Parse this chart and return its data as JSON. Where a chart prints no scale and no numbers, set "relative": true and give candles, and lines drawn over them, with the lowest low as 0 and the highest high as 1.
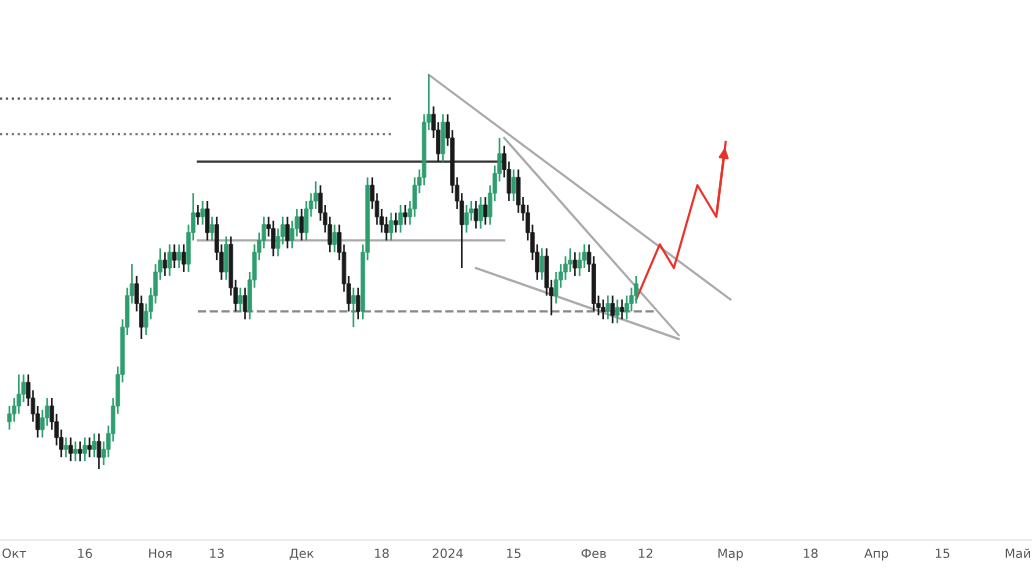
{
  "chart_data": {
    "type": "candlestick",
    "relative": true,
    "x": [
      "2023-09-30",
      "2023-10-01",
      "2023-10-02",
      "2023-10-03",
      "2023-10-04",
      "2023-10-05",
      "2023-10-06",
      "2023-10-07",
      "2023-10-08",
      "2023-10-09",
      "2023-10-10",
      "2023-10-11",
      "2023-10-12",
      "2023-10-13",
      "2023-10-14",
      "2023-10-15",
      "2023-10-16",
      "2023-10-17",
      "2023-10-18",
      "2023-10-19",
      "2023-10-20",
      "2023-10-21",
      "2023-10-22",
      "2023-10-23",
      "2023-10-24",
      "2023-10-25",
      "2023-10-26",
      "2023-10-27",
      "2023-10-28",
      "2023-10-29",
      "2023-10-30",
      "2023-10-31",
      "2023-11-01",
      "2023-11-02",
      "2023-11-03",
      "2023-11-04",
      "2023-11-05",
      "2023-11-06",
      "2023-11-07",
      "2023-11-08",
      "2023-11-09",
      "2023-11-10",
      "2023-11-11",
      "2023-11-12",
      "2023-11-13",
      "2023-11-14",
      "2023-11-15",
      "2023-11-16",
      "2023-11-17",
      "2023-11-18",
      "2023-11-19",
      "2023-11-20",
      "2023-11-21",
      "2023-11-22",
      "2023-11-23",
      "2023-11-24",
      "2023-11-25",
      "2023-11-26",
      "2023-11-27",
      "2023-11-28",
      "2023-11-29",
      "2023-11-30",
      "2023-12-01",
      "2023-12-02",
      "2023-12-03",
      "2023-12-04",
      "2023-12-05",
      "2023-12-06",
      "2023-12-07",
      "2023-12-08",
      "2023-12-09",
      "2023-12-10",
      "2023-12-11",
      "2023-12-12",
      "2023-12-13",
      "2023-12-14",
      "2023-12-15",
      "2023-12-16",
      "2023-12-17",
      "2023-12-18",
      "2023-12-19",
      "2023-12-20",
      "2023-12-21",
      "2023-12-22",
      "2023-12-23",
      "2023-12-24",
      "2023-12-25",
      "2023-12-26",
      "2023-12-27",
      "2023-12-28",
      "2023-12-29",
      "2023-12-30",
      "2023-12-31",
      "2024-01-01",
      "2024-01-02",
      "2024-01-03",
      "2024-01-04",
      "2024-01-05",
      "2024-01-06",
      "2024-01-07",
      "2024-01-08",
      "2024-01-09",
      "2024-01-10",
      "2024-01-11",
      "2024-01-12",
      "2024-01-13",
      "2024-01-14",
      "2024-01-15",
      "2024-01-16",
      "2024-01-17",
      "2024-01-18",
      "2024-01-19",
      "2024-01-20",
      "2024-01-21",
      "2024-01-22",
      "2024-01-23",
      "2024-01-24",
      "2024-01-25",
      "2024-01-26",
      "2024-01-27",
      "2024-01-28",
      "2024-01-29",
      "2024-01-30",
      "2024-01-31",
      "2024-02-01",
      "2024-02-02",
      "2024-02-03",
      "2024-02-04",
      "2024-02-05",
      "2024-02-06",
      "2024-02-07",
      "2024-02-08",
      "2024-02-09",
      "2024-02-10"
    ],
    "ohlc": [
      [
        0.12,
        0.16,
        0.1,
        0.14
      ],
      [
        0.14,
        0.18,
        0.12,
        0.16
      ],
      [
        0.16,
        0.24,
        0.14,
        0.19
      ],
      [
        0.19,
        0.24,
        0.17,
        0.22
      ],
      [
        0.22,
        0.24,
        0.16,
        0.18
      ],
      [
        0.18,
        0.2,
        0.12,
        0.14
      ],
      [
        0.14,
        0.16,
        0.08,
        0.1
      ],
      [
        0.1,
        0.15,
        0.08,
        0.13
      ],
      [
        0.13,
        0.18,
        0.11,
        0.16
      ],
      [
        0.16,
        0.18,
        0.1,
        0.12
      ],
      [
        0.12,
        0.14,
        0.06,
        0.08
      ],
      [
        0.08,
        0.1,
        0.03,
        0.05
      ],
      [
        0.05,
        0.08,
        0.03,
        0.06
      ],
      [
        0.06,
        0.08,
        0.02,
        0.04
      ],
      [
        0.04,
        0.07,
        0.02,
        0.05
      ],
      [
        0.05,
        0.07,
        0.02,
        0.04
      ],
      [
        0.04,
        0.08,
        0.02,
        0.06
      ],
      [
        0.06,
        0.08,
        0.03,
        0.05
      ],
      [
        0.05,
        0.09,
        0.03,
        0.07
      ],
      [
        0.07,
        0.09,
        0.0,
        0.03
      ],
      [
        0.03,
        0.07,
        0.01,
        0.05
      ],
      [
        0.05,
        0.11,
        0.03,
        0.09
      ],
      [
        0.09,
        0.18,
        0.07,
        0.16
      ],
      [
        0.16,
        0.26,
        0.14,
        0.24
      ],
      [
        0.24,
        0.38,
        0.22,
        0.36
      ],
      [
        0.36,
        0.46,
        0.34,
        0.44
      ],
      [
        0.44,
        0.52,
        0.42,
        0.47
      ],
      [
        0.47,
        0.49,
        0.4,
        0.42
      ],
      [
        0.42,
        0.44,
        0.33,
        0.36
      ],
      [
        0.36,
        0.42,
        0.34,
        0.4
      ],
      [
        0.4,
        0.46,
        0.38,
        0.44
      ],
      [
        0.44,
        0.52,
        0.42,
        0.5
      ],
      [
        0.5,
        0.56,
        0.48,
        0.53
      ],
      [
        0.53,
        0.55,
        0.49,
        0.51
      ],
      [
        0.51,
        0.57,
        0.49,
        0.55
      ],
      [
        0.55,
        0.57,
        0.51,
        0.53
      ],
      [
        0.53,
        0.57,
        0.51,
        0.55
      ],
      [
        0.55,
        0.57,
        0.5,
        0.52
      ],
      [
        0.52,
        0.62,
        0.5,
        0.6
      ],
      [
        0.6,
        0.7,
        0.58,
        0.65
      ],
      [
        0.65,
        0.67,
        0.62,
        0.64
      ],
      [
        0.64,
        0.68,
        0.62,
        0.66
      ],
      [
        0.66,
        0.68,
        0.58,
        0.6
      ],
      [
        0.6,
        0.64,
        0.58,
        0.62
      ],
      [
        0.62,
        0.64,
        0.53,
        0.55
      ],
      [
        0.55,
        0.57,
        0.48,
        0.5
      ],
      [
        0.5,
        0.59,
        0.48,
        0.57
      ],
      [
        0.57,
        0.59,
        0.44,
        0.46
      ],
      [
        0.46,
        0.48,
        0.4,
        0.42
      ],
      [
        0.42,
        0.46,
        0.4,
        0.44
      ],
      [
        0.44,
        0.46,
        0.38,
        0.4
      ],
      [
        0.4,
        0.5,
        0.38,
        0.48
      ],
      [
        0.48,
        0.57,
        0.46,
        0.55
      ],
      [
        0.55,
        0.6,
        0.53,
        0.58
      ],
      [
        0.58,
        0.64,
        0.56,
        0.62
      ],
      [
        0.62,
        0.64,
        0.59,
        0.61
      ],
      [
        0.61,
        0.63,
        0.54,
        0.56
      ],
      [
        0.56,
        0.61,
        0.54,
        0.59
      ],
      [
        0.59,
        0.64,
        0.57,
        0.62
      ],
      [
        0.62,
        0.64,
        0.56,
        0.58
      ],
      [
        0.58,
        0.63,
        0.56,
        0.61
      ],
      [
        0.61,
        0.66,
        0.59,
        0.64
      ],
      [
        0.64,
        0.66,
        0.58,
        0.6
      ],
      [
        0.6,
        0.68,
        0.58,
        0.66
      ],
      [
        0.66,
        0.7,
        0.64,
        0.68
      ],
      [
        0.68,
        0.73,
        0.66,
        0.7
      ],
      [
        0.7,
        0.72,
        0.63,
        0.65
      ],
      [
        0.65,
        0.67,
        0.6,
        0.62
      ],
      [
        0.62,
        0.64,
        0.55,
        0.57
      ],
      [
        0.57,
        0.62,
        0.55,
        0.6
      ],
      [
        0.6,
        0.62,
        0.53,
        0.55
      ],
      [
        0.55,
        0.57,
        0.45,
        0.47
      ],
      [
        0.47,
        0.49,
        0.4,
        0.42
      ],
      [
        0.42,
        0.46,
        0.36,
        0.44
      ],
      [
        0.44,
        0.46,
        0.38,
        0.4
      ],
      [
        0.4,
        0.57,
        0.38,
        0.55
      ],
      [
        0.55,
        0.74,
        0.53,
        0.72
      ],
      [
        0.72,
        0.74,
        0.66,
        0.68
      ],
      [
        0.68,
        0.7,
        0.62,
        0.64
      ],
      [
        0.64,
        0.66,
        0.6,
        0.62
      ],
      [
        0.62,
        0.64,
        0.58,
        0.6
      ],
      [
        0.6,
        0.65,
        0.58,
        0.63
      ],
      [
        0.63,
        0.65,
        0.6,
        0.62
      ],
      [
        0.62,
        0.67,
        0.6,
        0.65
      ],
      [
        0.65,
        0.67,
        0.62,
        0.64
      ],
      [
        0.64,
        0.68,
        0.62,
        0.66
      ],
      [
        0.66,
        0.74,
        0.64,
        0.72
      ],
      [
        0.72,
        0.76,
        0.7,
        0.74
      ],
      [
        0.74,
        0.9,
        0.72,
        0.88
      ],
      [
        0.88,
        1.0,
        0.86,
        0.9
      ],
      [
        0.9,
        0.92,
        0.84,
        0.86
      ],
      [
        0.86,
        0.88,
        0.78,
        0.8
      ],
      [
        0.8,
        0.9,
        0.78,
        0.88
      ],
      [
        0.88,
        0.9,
        0.82,
        0.84
      ],
      [
        0.84,
        0.86,
        0.7,
        0.72
      ],
      [
        0.72,
        0.74,
        0.66,
        0.68
      ],
      [
        0.68,
        0.7,
        0.51,
        0.62
      ],
      [
        0.62,
        0.67,
        0.6,
        0.65
      ],
      [
        0.65,
        0.68,
        0.63,
        0.66
      ],
      [
        0.66,
        0.68,
        0.61,
        0.63
      ],
      [
        0.63,
        0.69,
        0.61,
        0.67
      ],
      [
        0.67,
        0.69,
        0.62,
        0.64
      ],
      [
        0.64,
        0.72,
        0.62,
        0.7
      ],
      [
        0.7,
        0.77,
        0.68,
        0.75
      ],
      [
        0.75,
        0.84,
        0.73,
        0.8
      ],
      [
        0.8,
        0.82,
        0.74,
        0.76
      ],
      [
        0.76,
        0.78,
        0.68,
        0.7
      ],
      [
        0.7,
        0.76,
        0.68,
        0.74
      ],
      [
        0.74,
        0.76,
        0.65,
        0.67
      ],
      [
        0.67,
        0.69,
        0.63,
        0.65
      ],
      [
        0.65,
        0.67,
        0.58,
        0.6
      ],
      [
        0.6,
        0.62,
        0.53,
        0.55
      ],
      [
        0.55,
        0.57,
        0.48,
        0.5
      ],
      [
        0.5,
        0.56,
        0.48,
        0.54
      ],
      [
        0.54,
        0.56,
        0.44,
        0.46
      ],
      [
        0.46,
        0.48,
        0.39,
        0.44
      ],
      [
        0.44,
        0.5,
        0.42,
        0.48
      ],
      [
        0.48,
        0.52,
        0.46,
        0.5
      ],
      [
        0.5,
        0.54,
        0.48,
        0.52
      ],
      [
        0.52,
        0.56,
        0.5,
        0.53
      ],
      [
        0.53,
        0.55,
        0.49,
        0.51
      ],
      [
        0.51,
        0.55,
        0.49,
        0.53
      ],
      [
        0.53,
        0.57,
        0.51,
        0.55
      ],
      [
        0.55,
        0.57,
        0.5,
        0.52
      ],
      [
        0.52,
        0.54,
        0.4,
        0.42
      ],
      [
        0.42,
        0.44,
        0.39,
        0.41
      ],
      [
        0.41,
        0.43,
        0.38,
        0.4
      ],
      [
        0.4,
        0.44,
        0.38,
        0.42
      ],
      [
        0.42,
        0.44,
        0.37,
        0.39
      ],
      [
        0.39,
        0.43,
        0.37,
        0.41
      ],
      [
        0.41,
        0.43,
        0.38,
        0.4
      ],
      [
        0.4,
        0.44,
        0.38,
        0.42
      ],
      [
        0.42,
        0.46,
        0.4,
        0.44
      ],
      [
        0.44,
        0.49,
        0.42,
        0.47
      ]
    ],
    "series": [
      {
        "type": "line",
        "color": "#555555",
        "line_style": "dotted",
        "x": [
          "2023-09-28",
          "2023-12-20"
        ],
        "values": [
          0.94,
          0.94
        ]
      },
      {
        "type": "line",
        "color": "#777777",
        "line_style": "dotted",
        "x": [
          "2023-09-28",
          "2023-12-20"
        ],
        "values": [
          0.85,
          0.85
        ]
      },
      {
        "type": "line",
        "color": "#333333",
        "line_style": "solid",
        "x": [
          "2023-11-09",
          "2024-01-13"
        ],
        "values": [
          0.78,
          0.78
        ]
      },
      {
        "type": "line",
        "color": "#aaaaaa",
        "line_style": "solid",
        "x": [
          "2023-11-09",
          "2024-01-13"
        ],
        "values": [
          0.58,
          0.58
        ]
      },
      {
        "type": "line",
        "color": "#888888",
        "line_style": "dashed",
        "x": [
          "2023-11-09",
          "2024-02-14"
        ],
        "values": [
          0.4,
          0.4
        ]
      },
      {
        "type": "line",
        "color": "#aaaaaa",
        "line_style": "solid",
        "x": [
          "2023-12-28",
          "2024-03-01"
        ],
        "values": [
          1.0,
          0.43
        ]
      },
      {
        "type": "line",
        "color": "#aaaaaa",
        "line_style": "solid",
        "x": [
          "2024-01-07",
          "2024-02-19"
        ],
        "values": [
          0.51,
          0.33
        ]
      },
      {
        "type": "line",
        "color": "#aaaaaa",
        "line_style": "solid",
        "x": [
          "2024-01-13",
          "2024-02-19"
        ],
        "values": [
          0.84,
          0.34
        ]
      },
      {
        "type": "line",
        "color": "#e8332a",
        "line_style": "solid",
        "x": [
          "2024-02-10",
          "2024-02-15",
          "2024-02-18",
          "2024-02-23",
          "2024-02-27",
          "2024-02-29"
        ],
        "values": [
          0.43,
          0.57,
          0.51,
          0.72,
          0.64,
          0.83
        ]
      }
    ],
    "xlim": [
      "2023-09-28",
      "2024-05-04"
    ],
    "xticks": [
      {
        "value": "2023-10-01",
        "label": "Окт"
      },
      {
        "value": "2023-10-16",
        "label": "16"
      },
      {
        "value": "2023-11-01",
        "label": "Ноя"
      },
      {
        "value": "2023-11-13",
        "label": "13"
      },
      {
        "value": "2023-12-01",
        "label": "Дек"
      },
      {
        "value": "2023-12-18",
        "label": "18"
      },
      {
        "value": "2024-01-01",
        "label": "2024"
      },
      {
        "value": "2024-01-15",
        "label": "15"
      },
      {
        "value": "2024-02-01",
        "label": "Фев"
      },
      {
        "value": "2024-02-12",
        "label": "12"
      },
      {
        "value": "2024-03-01",
        "label": "Мар"
      },
      {
        "value": "2024-03-18",
        "label": "18"
      },
      {
        "value": "2024-04-01",
        "label": "Апр"
      },
      {
        "value": "2024-04-15",
        "label": "15"
      },
      {
        "value": "2024-05-01",
        "label": "Май"
      }
    ],
    "tick_labels": "x",
    "grid": false,
    "legend": false
  }
}
